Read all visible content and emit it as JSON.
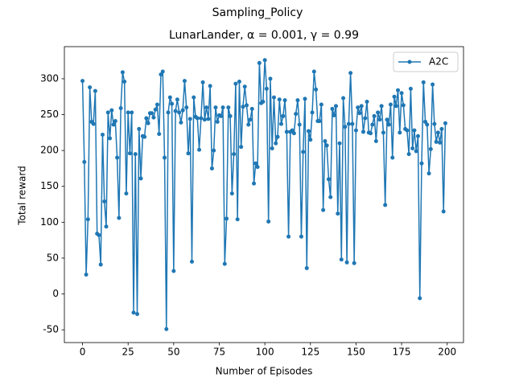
{
  "chart_data": {
    "type": "line",
    "title": "Sampling_Policy",
    "subtitle": "LunarLander, α = 0.001, γ = 0.99",
    "x_label": "Number of Episodes",
    "y_label": "Total reward",
    "x": [
      0,
      1,
      2,
      3,
      4,
      5,
      6,
      7,
      8,
      9,
      10,
      11,
      12,
      13,
      14,
      15,
      16,
      17,
      18,
      19,
      20,
      21,
      22,
      23,
      24,
      25,
      26,
      27,
      28,
      29,
      30,
      31,
      32,
      33,
      34,
      35,
      36,
      37,
      38,
      39,
      40,
      41,
      42,
      43,
      44,
      45,
      46,
      47,
      48,
      49,
      50,
      51,
      52,
      53,
      54,
      55,
      56,
      57,
      58,
      59,
      60,
      61,
      62,
      63,
      64,
      65,
      66,
      67,
      68,
      69,
      70,
      71,
      72,
      73,
      74,
      75,
      76,
      77,
      78,
      79,
      80,
      81,
      82,
      83,
      84,
      85,
      86,
      87,
      88,
      89,
      90,
      91,
      92,
      93,
      94,
      95,
      96,
      97,
      98,
      99,
      100,
      101,
      102,
      103,
      104,
      105,
      106,
      107,
      108,
      109,
      110,
      111,
      112,
      113,
      114,
      115,
      116,
      117,
      118,
      119,
      120,
      121,
      122,
      123,
      124,
      125,
      126,
      127,
      128,
      129,
      130,
      131,
      132,
      133,
      134,
      135,
      136,
      137,
      138,
      139,
      140,
      141,
      142,
      143,
      144,
      145,
      146,
      147,
      148,
      149,
      150,
      151,
      152,
      153,
      154,
      155,
      156,
      157,
      158,
      159,
      160,
      161,
      162,
      163,
      164,
      165,
      166,
      167,
      168,
      169,
      170,
      171,
      172,
      173,
      174,
      175,
      176,
      177,
      178,
      179,
      180,
      181,
      182,
      183,
      184,
      185,
      186,
      187,
      188,
      189,
      190,
      191,
      192,
      193,
      194,
      195,
      196,
      197,
      198,
      199
    ],
    "series": [
      {
        "name": "A2C",
        "color": "#1f77b4",
        "values": [
          297,
          184,
          27,
          104,
          288,
          240,
          237,
          283,
          84,
          82,
          41,
          222,
          129,
          94,
          253,
          217,
          256,
          236,
          241,
          190,
          106,
          259,
          309,
          296,
          140,
          253,
          196,
          253,
          -26,
          195,
          -28,
          230,
          161,
          220,
          219,
          245,
          238,
          252,
          252,
          246,
          257,
          264,
          223,
          306,
          310,
          190,
          -49,
          253,
          274,
          265,
          32,
          255,
          271,
          253,
          239,
          256,
          297,
          260,
          196,
          244,
          45,
          274,
          247,
          245,
          201,
          245,
          295,
          243,
          260,
          244,
          290,
          175,
          200,
          260,
          240,
          249,
          248,
          260,
          42,
          105,
          260,
          248,
          140,
          195,
          293,
          104,
          296,
          205,
          261,
          289,
          263,
          236,
          243,
          258,
          154,
          182,
          177,
          322,
          266,
          268,
          326,
          286,
          101,
          300,
          203,
          274,
          210,
          219,
          271,
          237,
          248,
          270,
          226,
          80,
          226,
          228,
          224,
          251,
          270,
          236,
          80,
          198,
          272,
          36,
          227,
          215,
          253,
          310,
          285,
          241,
          241,
          264,
          117,
          213,
          207,
          160,
          135,
          258,
          249,
          262,
          112,
          210,
          48,
          273,
          233,
          44,
          237,
          308,
          237,
          43,
          228,
          260,
          252,
          262,
          226,
          245,
          268,
          225,
          224,
          236,
          248,
          213,
          253,
          243,
          262,
          225,
          124,
          243,
          236,
          264,
          190,
          275,
          262,
          284,
          225,
          280,
          263,
          230,
          228,
          195,
          286,
          203,
          228,
          199,
          220,
          -6,
          182,
          295,
          240,
          236,
          168,
          202,
          292,
          237,
          212,
          225,
          211,
          230,
          115,
          238
        ]
      }
    ],
    "xlim": [
      -9.95,
      208.95
    ],
    "ylim": [
      -67.75,
      344.75
    ],
    "xticks": [
      0,
      25,
      50,
      75,
      100,
      125,
      150,
      175,
      200
    ],
    "yticks": [
      -50,
      0,
      50,
      100,
      150,
      200,
      250,
      300
    ],
    "legend": "upper right",
    "grid": false
  }
}
